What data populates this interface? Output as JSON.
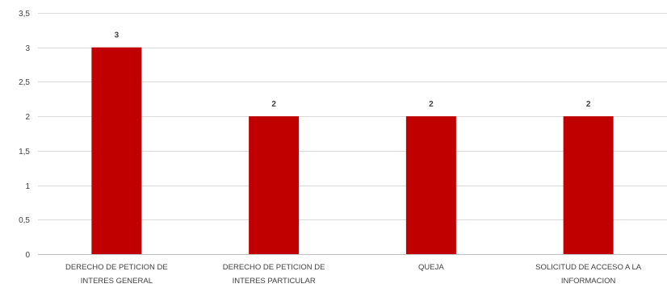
{
  "chart_data": {
    "type": "bar",
    "categories": [
      [
        "DERECHO DE PETICION DE",
        "INTERES GENERAL"
      ],
      [
        "DERECHO DE PETICION DE",
        "INTERES PARTICULAR"
      ],
      [
        "QUEJA"
      ],
      [
        "SOLICITUD DE ACCESO A LA",
        "INFORMACION"
      ]
    ],
    "values": [
      3,
      2,
      2,
      2
    ],
    "data_labels": [
      "3",
      "2",
      "2",
      "2"
    ],
    "ylim": [
      0,
      3.5
    ],
    "yticks": [
      0,
      0.5,
      1,
      1.5,
      2,
      2.5,
      3,
      3.5
    ],
    "ytick_labels": [
      "0",
      "0,5",
      "1",
      "1,5",
      "2",
      "2,5",
      "3",
      "3,5"
    ],
    "grid": true,
    "bar_color": "#c00000",
    "grid_color": "#d9d9d9",
    "title": "",
    "xlabel": "",
    "ylabel": ""
  }
}
